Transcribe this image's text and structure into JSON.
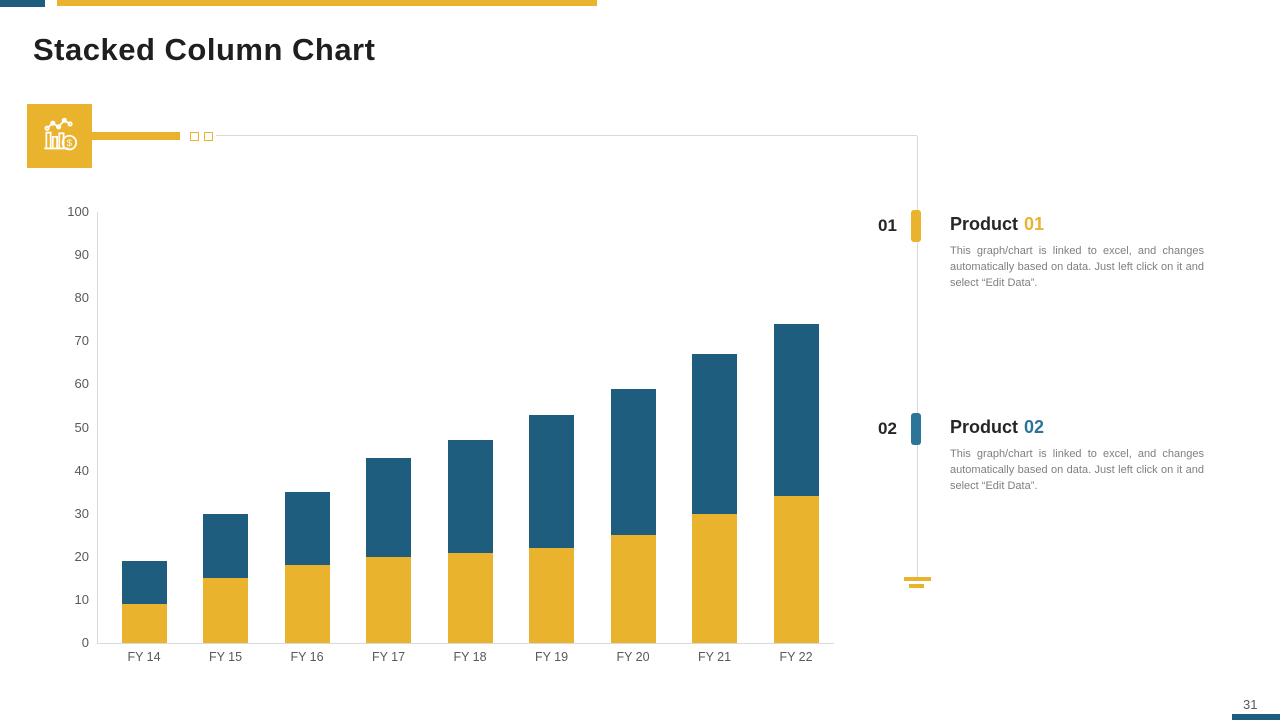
{
  "page": {
    "title": "Stacked Column Chart",
    "page_number": "31"
  },
  "colors": {
    "accent_yellow": "#E9B32E",
    "accent_teal": "#1E5D7D",
    "legend_teal": "#2C7599",
    "title_text": "#1F1F1F",
    "axis_text": "#595959",
    "body_text": "#7F7F7F",
    "line_gray": "#D9D9D9"
  },
  "icons": {
    "header_icon": "bar-chart-with-money-icon"
  },
  "chart_data": {
    "type": "bar",
    "stacked": true,
    "title": "Stacked Column Chart",
    "categories": [
      "FY 14",
      "FY 15",
      "FY 16",
      "FY 17",
      "FY 18",
      "FY 19",
      "FY 20",
      "FY 21",
      "FY 22"
    ],
    "series": [
      {
        "name": "Product 01",
        "color": "#E9B32E",
        "values": [
          9,
          15,
          18,
          20,
          21,
          22,
          25,
          30,
          34
        ]
      },
      {
        "name": "Product 02",
        "color": "#1E5D7D",
        "values": [
          10,
          15,
          17,
          23,
          26,
          31,
          34,
          37,
          40
        ]
      }
    ],
    "totals": [
      19,
      30,
      35,
      43,
      47,
      53,
      59,
      67,
      74
    ],
    "xlabel": "",
    "ylabel": "",
    "ylim": [
      0,
      100
    ],
    "yticks": [
      0,
      10,
      20,
      30,
      40,
      50,
      60,
      70,
      80,
      90,
      100
    ],
    "grid": false,
    "legend_position": "none"
  },
  "legend_items": [
    {
      "number": "01",
      "title_label": "Product",
      "title_number": "01",
      "description": "This graph/chart is linked to excel, and changes automatically based on data. Just left click on it and select “Edit Data”."
    },
    {
      "number": "02",
      "title_label": "Product",
      "title_number": "02",
      "description": "This graph/chart is linked to excel, and changes automatically based on data. Just left click on it and select “Edit Data”."
    }
  ]
}
